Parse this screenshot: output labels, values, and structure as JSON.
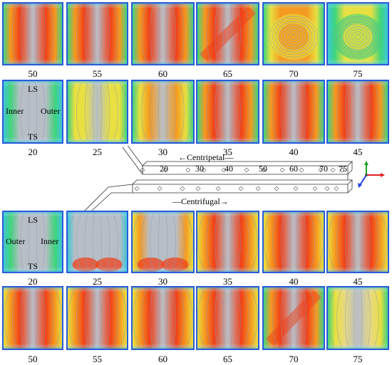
{
  "rows": [
    {
      "id": "row-1",
      "group": "centripetal",
      "panels": [
        {
          "label": "50",
          "field": "hot"
        },
        {
          "label": "55",
          "field": "hot"
        },
        {
          "label": "60",
          "field": "hot"
        },
        {
          "label": "65",
          "field": "hot-diagonal"
        },
        {
          "label": "70",
          "field": "vortex-orange"
        },
        {
          "label": "75",
          "field": "vortex-green"
        }
      ]
    },
    {
      "id": "row-2",
      "group": "centripetal",
      "panels": [
        {
          "label": "20",
          "field": "cool",
          "inner_labels": {
            "top": "LS",
            "left": "Inner",
            "right": "Outer",
            "bottom": "TS"
          }
        },
        {
          "label": "25",
          "field": "yellow"
        },
        {
          "label": "30",
          "field": "warm"
        },
        {
          "label": "35",
          "field": "hot"
        },
        {
          "label": "40",
          "field": "hot"
        },
        {
          "label": "45",
          "field": "hot"
        }
      ]
    },
    {
      "id": "row-3",
      "group": "centrifugal",
      "panels": [
        {
          "label": "20",
          "field": "cool",
          "inner_labels": {
            "top": "LS",
            "left": "Outer",
            "right": "Inner",
            "bottom": "TS"
          }
        },
        {
          "label": "25",
          "field": "cool-bottom"
        },
        {
          "label": "30",
          "field": "warm-bottom"
        },
        {
          "label": "35",
          "field": "warm-sides"
        },
        {
          "label": "40",
          "field": "warm-sides"
        },
        {
          "label": "45",
          "field": "warm-sides"
        }
      ]
    },
    {
      "id": "row-4",
      "group": "centrifugal",
      "panels": [
        {
          "label": "50",
          "field": "hot-sides"
        },
        {
          "label": "55",
          "field": "hot-sides"
        },
        {
          "label": "60",
          "field": "hot-sides"
        },
        {
          "label": "65",
          "field": "hot-sides"
        },
        {
          "label": "70",
          "field": "hot-diagonal"
        },
        {
          "label": "75",
          "field": "yellow-pale"
        }
      ]
    }
  ],
  "schematic": {
    "centripetal_label": "Centripetal",
    "centrifugal_label": "Centrifugal",
    "position_labels": [
      "20",
      "30",
      "40",
      "50",
      "60",
      "70",
      "75"
    ]
  },
  "colors": {
    "border": "#2a5cd8",
    "streamline": "#8a9bb0",
    "hot": "#f0401a",
    "warm": "#f59a20",
    "yellow": "#e8e040",
    "green": "#3ed67a",
    "cyan": "#3cc8d8",
    "gray": "#b8bec6"
  },
  "axis_colors": {
    "x": "#e02020",
    "y": "#20a020",
    "z": "#2040e0"
  }
}
